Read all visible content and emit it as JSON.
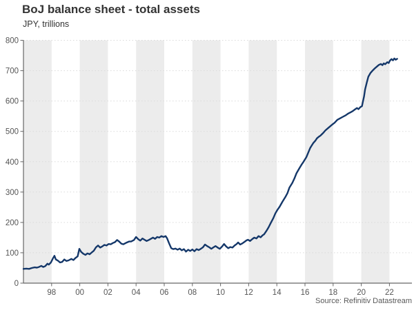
{
  "header": {
    "title": "BoJ balance sheet - total assets",
    "subtitle": "JPY, trillions"
  },
  "footer": {
    "source": "Source: Refinitiv Datastream"
  },
  "colors": {
    "line": "#143769",
    "band": "#ececec",
    "grid": "#d9d9d9",
    "axis": "#666666",
    "tick_text": "#555555",
    "title_text": "#333333",
    "source_text": "#595959"
  },
  "chart_data": {
    "type": "line",
    "title": "BoJ balance sheet - total assets",
    "subtitle": "JPY, trillions",
    "source": "Source: Refinitiv Datastream",
    "xlabel": "",
    "ylabel": "JPY, trillions",
    "x_domain": [
      1996,
      2023.6
    ],
    "ylim": [
      0,
      800
    ],
    "y_ticks": [
      0,
      100,
      200,
      300,
      400,
      500,
      600,
      700,
      800
    ],
    "x_ticks": [
      {
        "year": 1998,
        "label": "98"
      },
      {
        "year": 2000,
        "label": "00"
      },
      {
        "year": 2002,
        "label": "02"
      },
      {
        "year": 2004,
        "label": "04"
      },
      {
        "year": 2006,
        "label": "06"
      },
      {
        "year": 2008,
        "label": "08"
      },
      {
        "year": 2010,
        "label": "10"
      },
      {
        "year": 2012,
        "label": "12"
      },
      {
        "year": 2014,
        "label": "14"
      },
      {
        "year": 2016,
        "label": "16"
      },
      {
        "year": 2018,
        "label": "18"
      },
      {
        "year": 2020,
        "label": "20"
      },
      {
        "year": 2022,
        "label": "22"
      }
    ],
    "grid": "horizontal-dotted",
    "legend": "none",
    "background_bands": {
      "ranges": [
        [
          1996,
          1998
        ],
        [
          2000,
          2002
        ],
        [
          2004,
          2006
        ],
        [
          2008,
          2010
        ],
        [
          2012,
          2014
        ],
        [
          2016,
          2018
        ],
        [
          2020,
          2022
        ]
      ]
    },
    "series": [
      {
        "name": "BoJ total assets",
        "points": [
          [
            1996.0,
            47
          ],
          [
            1996.2,
            48
          ],
          [
            1996.4,
            47
          ],
          [
            1996.6,
            50
          ],
          [
            1996.8,
            52
          ],
          [
            1996.95,
            51
          ],
          [
            1997.1,
            53
          ],
          [
            1997.27,
            57
          ],
          [
            1997.4,
            53
          ],
          [
            1997.55,
            56
          ],
          [
            1997.7,
            64
          ],
          [
            1997.8,
            61
          ],
          [
            1997.95,
            68
          ],
          [
            1998.1,
            82
          ],
          [
            1998.2,
            90
          ],
          [
            1998.3,
            78
          ],
          [
            1998.45,
            74
          ],
          [
            1998.6,
            68
          ],
          [
            1998.75,
            70
          ],
          [
            1998.9,
            78
          ],
          [
            1999.05,
            73
          ],
          [
            1999.2,
            75
          ],
          [
            1999.4,
            80
          ],
          [
            1999.55,
            76
          ],
          [
            1999.7,
            83
          ],
          [
            1999.85,
            88
          ],
          [
            1999.97,
            113
          ],
          [
            2000.1,
            103
          ],
          [
            2000.25,
            97
          ],
          [
            2000.4,
            93
          ],
          [
            2000.55,
            98
          ],
          [
            2000.7,
            95
          ],
          [
            2000.85,
            101
          ],
          [
            2001.0,
            107
          ],
          [
            2001.15,
            118
          ],
          [
            2001.3,
            124
          ],
          [
            2001.45,
            117
          ],
          [
            2001.6,
            121
          ],
          [
            2001.75,
            126
          ],
          [
            2001.9,
            124
          ],
          [
            2002.05,
            129
          ],
          [
            2002.2,
            128
          ],
          [
            2002.35,
            132
          ],
          [
            2002.5,
            135
          ],
          [
            2002.65,
            142
          ],
          [
            2002.8,
            137
          ],
          [
            2002.95,
            130
          ],
          [
            2003.1,
            128
          ],
          [
            2003.3,
            133
          ],
          [
            2003.5,
            137
          ],
          [
            2003.65,
            137
          ],
          [
            2003.85,
            142
          ],
          [
            2004.0,
            152
          ],
          [
            2004.15,
            145
          ],
          [
            2004.3,
            140
          ],
          [
            2004.45,
            147
          ],
          [
            2004.6,
            143
          ],
          [
            2004.75,
            139
          ],
          [
            2004.9,
            142
          ],
          [
            2005.05,
            146
          ],
          [
            2005.2,
            150
          ],
          [
            2005.35,
            146
          ],
          [
            2005.5,
            152
          ],
          [
            2005.65,
            150
          ],
          [
            2005.8,
            155
          ],
          [
            2005.95,
            152
          ],
          [
            2006.1,
            155
          ],
          [
            2006.2,
            148
          ],
          [
            2006.35,
            131
          ],
          [
            2006.5,
            115
          ],
          [
            2006.65,
            112
          ],
          [
            2006.8,
            114
          ],
          [
            2006.95,
            110
          ],
          [
            2007.1,
            114
          ],
          [
            2007.25,
            108
          ],
          [
            2007.4,
            112
          ],
          [
            2007.55,
            104
          ],
          [
            2007.7,
            110
          ],
          [
            2007.85,
            106
          ],
          [
            2008.0,
            111
          ],
          [
            2008.15,
            105
          ],
          [
            2008.3,
            112
          ],
          [
            2008.45,
            109
          ],
          [
            2008.6,
            113
          ],
          [
            2008.75,
            118
          ],
          [
            2008.9,
            127
          ],
          [
            2009.05,
            122
          ],
          [
            2009.2,
            118
          ],
          [
            2009.35,
            113
          ],
          [
            2009.5,
            118
          ],
          [
            2009.65,
            122
          ],
          [
            2009.8,
            117
          ],
          [
            2009.95,
            113
          ],
          [
            2010.1,
            120
          ],
          [
            2010.25,
            129
          ],
          [
            2010.4,
            121
          ],
          [
            2010.55,
            115
          ],
          [
            2010.7,
            119
          ],
          [
            2010.85,
            117
          ],
          [
            2011.0,
            124
          ],
          [
            2011.15,
            129
          ],
          [
            2011.25,
            134
          ],
          [
            2011.4,
            127
          ],
          [
            2011.55,
            131
          ],
          [
            2011.7,
            136
          ],
          [
            2011.85,
            141
          ],
          [
            2011.95,
            143
          ],
          [
            2012.1,
            139
          ],
          [
            2012.25,
            145
          ],
          [
            2012.4,
            150
          ],
          [
            2012.55,
            147
          ],
          [
            2012.7,
            155
          ],
          [
            2012.85,
            151
          ],
          [
            2013.0,
            158
          ],
          [
            2013.1,
            161
          ],
          [
            2013.26,
            172
          ],
          [
            2013.42,
            184
          ],
          [
            2013.58,
            199
          ],
          [
            2013.75,
            214
          ],
          [
            2013.9,
            230
          ],
          [
            2014.05,
            242
          ],
          [
            2014.2,
            252
          ],
          [
            2014.4,
            268
          ],
          [
            2014.6,
            283
          ],
          [
            2014.75,
            296
          ],
          [
            2014.9,
            315
          ],
          [
            2015.1,
            330
          ],
          [
            2015.25,
            345
          ],
          [
            2015.4,
            362
          ],
          [
            2015.6,
            378
          ],
          [
            2015.75,
            390
          ],
          [
            2015.9,
            400
          ],
          [
            2016.1,
            415
          ],
          [
            2016.25,
            432
          ],
          [
            2016.37,
            445
          ],
          [
            2016.5,
            455
          ],
          [
            2016.6,
            462
          ],
          [
            2016.75,
            470
          ],
          [
            2016.85,
            477
          ],
          [
            2017.0,
            483
          ],
          [
            2017.1,
            486
          ],
          [
            2017.3,
            495
          ],
          [
            2017.45,
            503
          ],
          [
            2017.6,
            509
          ],
          [
            2017.8,
            517
          ],
          [
            2017.95,
            523
          ],
          [
            2018.1,
            528
          ],
          [
            2018.3,
            538
          ],
          [
            2018.5,
            543
          ],
          [
            2018.7,
            548
          ],
          [
            2018.9,
            553
          ],
          [
            2019.05,
            558
          ],
          [
            2019.25,
            563
          ],
          [
            2019.4,
            567
          ],
          [
            2019.54,
            572
          ],
          [
            2019.7,
            577
          ],
          [
            2019.8,
            573
          ],
          [
            2019.94,
            580
          ],
          [
            2020.05,
            583
          ],
          [
            2020.1,
            594
          ],
          [
            2020.2,
            615
          ],
          [
            2020.27,
            638
          ],
          [
            2020.4,
            662
          ],
          [
            2020.5,
            680
          ],
          [
            2020.65,
            692
          ],
          [
            2020.8,
            700
          ],
          [
            2020.95,
            707
          ],
          [
            2021.1,
            713
          ],
          [
            2021.25,
            719
          ],
          [
            2021.4,
            722
          ],
          [
            2021.5,
            718
          ],
          [
            2021.6,
            724
          ],
          [
            2021.7,
            721
          ],
          [
            2021.85,
            728
          ],
          [
            2021.95,
            725
          ],
          [
            2022.05,
            734
          ],
          [
            2022.15,
            738
          ],
          [
            2022.25,
            734
          ],
          [
            2022.35,
            740
          ],
          [
            2022.45,
            736
          ],
          [
            2022.55,
            739
          ]
        ]
      }
    ]
  }
}
